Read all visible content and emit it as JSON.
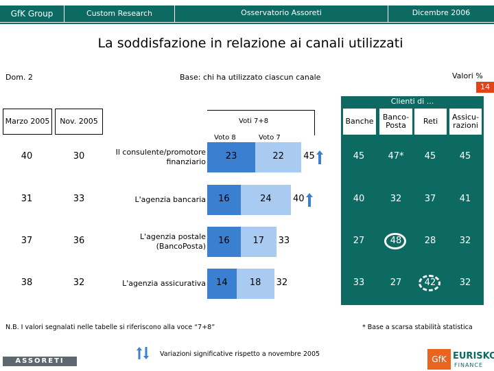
{
  "header": {
    "brand": "GfK Group",
    "research": "Custom Research",
    "observatory": "Osservatorio Assoreti",
    "date": "Dicembre 2006"
  },
  "title": "La soddisfazione in relazione ai canali utilizzati",
  "question": "Dom. 2",
  "base": "Base: chi ha utilizzato ciascun canale",
  "units": "Valori %",
  "units_badge": "14",
  "left_headers": {
    "marzo": "Marzo 2005",
    "nov": "Nov. 2005",
    "voti": "Voti 7+8",
    "voto8": "Voto 8",
    "voto7": "Voto 7"
  },
  "clienti_header": "Clienti di ...",
  "col_headers": [
    "Banche",
    "Banco-Posta",
    "Reti",
    "Assicu-razioni"
  ],
  "col_headers_lines": [
    [
      "Banche"
    ],
    [
      "Banco-",
      "Posta"
    ],
    [
      "Reti"
    ],
    [
      "Assicu-",
      "razioni"
    ]
  ],
  "colors": {
    "teal": "#0c6a63",
    "bar_dark": "#3a7fd0",
    "bar_light": "#a9cbf1",
    "accent": "#e1431a"
  },
  "chart_data": {
    "type": "bar",
    "stacked": true,
    "orientation": "horizontal",
    "categories": [
      [
        "Il consulente/promotore",
        "finanziario"
      ],
      [
        "L'agenzia bancaria"
      ],
      [
        "L'agenzia postale",
        "(BancoPosta)"
      ],
      [
        "L'agenzia assicurativa"
      ]
    ],
    "series": [
      {
        "name": "Voto 8",
        "values": [
          23,
          16,
          16,
          14
        ]
      },
      {
        "name": "Voto 7",
        "values": [
          22,
          24,
          17,
          18
        ]
      }
    ],
    "totals": [
      45,
      40,
      33,
      32
    ],
    "significant_increase": [
      true,
      true,
      false,
      false
    ],
    "history": {
      "Marzo 2005": [
        40,
        31,
        37,
        38
      ],
      "Nov. 2005": [
        30,
        33,
        36,
        32
      ]
    },
    "clienti_table": [
      [
        "45",
        "47*",
        "45",
        "45"
      ],
      [
        "40",
        "32",
        "37",
        "41"
      ],
      [
        "27",
        "48",
        "28",
        "32"
      ],
      [
        "33",
        "27",
        "42",
        "32"
      ]
    ],
    "circled_cells": [
      [
        2,
        1,
        "solid"
      ],
      [
        3,
        2,
        "dashed"
      ]
    ]
  },
  "footer": {
    "nb": "N.B. I valori segnalati nelle tabelle si riferiscono alla voce “7+8”",
    "note": "* Base a scarsa stabilità statistica",
    "variazioni": "Variazioni significative rispetto a novembre 2005",
    "assoreti_logo": "ASSORETI",
    "gfk_logo": "GfK",
    "eurisko": "EURISKO",
    "finance": "FINANCE"
  }
}
